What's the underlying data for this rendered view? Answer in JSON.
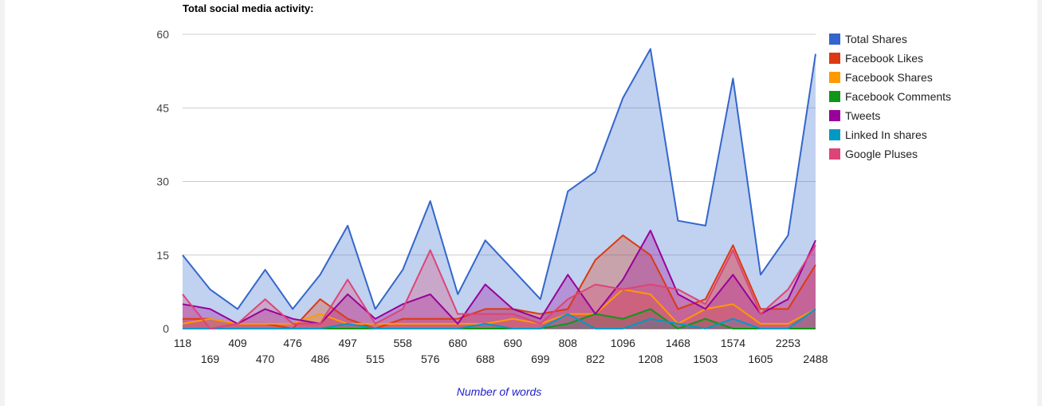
{
  "chart_data": {
    "type": "area",
    "title": "Total social media activity:",
    "xlabel": "Number of words",
    "ylabel": "",
    "ylim": [
      0,
      60
    ],
    "yticks": [
      0,
      15,
      30,
      45,
      60
    ],
    "grid": true,
    "legend_position": "right",
    "categories": [
      "118",
      "169",
      "409",
      "470",
      "476",
      "486",
      "497",
      "515",
      "558",
      "576",
      "680",
      "688",
      "690",
      "699",
      "808",
      "822",
      "1096",
      "1208",
      "1468",
      "1503",
      "1574",
      "1605",
      "2253",
      "2488"
    ],
    "series": [
      {
        "name": "Total Shares",
        "color": "#3366cc",
        "values": [
          15,
          8,
          4,
          12,
          4,
          11,
          21,
          4,
          12,
          26,
          7,
          18,
          12,
          6,
          28,
          32,
          47,
          57,
          22,
          21,
          51,
          11,
          19,
          56
        ]
      },
      {
        "name": "Facebook Likes",
        "color": "#dc3912",
        "values": [
          2,
          2,
          1,
          1,
          0,
          6,
          2,
          0,
          2,
          2,
          2,
          4,
          4,
          3,
          4,
          14,
          19,
          15,
          4,
          6,
          17,
          4,
          4,
          13
        ]
      },
      {
        "name": "Facebook Shares",
        "color": "#ff9900",
        "values": [
          1,
          2,
          1,
          1,
          1,
          3,
          1,
          1,
          1,
          1,
          1,
          1,
          2,
          1,
          3,
          3,
          8,
          7,
          1,
          4,
          5,
          1,
          1,
          4
        ]
      },
      {
        "name": "Facebook Comments",
        "color": "#109618",
        "values": [
          0,
          0,
          0,
          0,
          0,
          0,
          0,
          0,
          0,
          0,
          0,
          0,
          0,
          0,
          1,
          3,
          2,
          4,
          0,
          2,
          0,
          0,
          0,
          0
        ]
      },
      {
        "name": "Tweets",
        "color": "#990099",
        "values": [
          5,
          4,
          1,
          4,
          2,
          1,
          7,
          2,
          5,
          7,
          1,
          9,
          4,
          2,
          11,
          3,
          10,
          20,
          7,
          4,
          11,
          3,
          6,
          18
        ]
      },
      {
        "name": "Linked In shares",
        "color": "#0099c6",
        "values": [
          0,
          0,
          0,
          0,
          0,
          0,
          1,
          0,
          0,
          0,
          0,
          1,
          0,
          0,
          3,
          0,
          0,
          2,
          1,
          0,
          2,
          0,
          0,
          4
        ]
      },
      {
        "name": "Google Pluses",
        "color": "#dd4477",
        "values": [
          7,
          0,
          1,
          6,
          1,
          1,
          10,
          1,
          4,
          16,
          3,
          3,
          3,
          1,
          6,
          9,
          8,
          9,
          8,
          5,
          16,
          3,
          8,
          17
        ]
      }
    ]
  }
}
